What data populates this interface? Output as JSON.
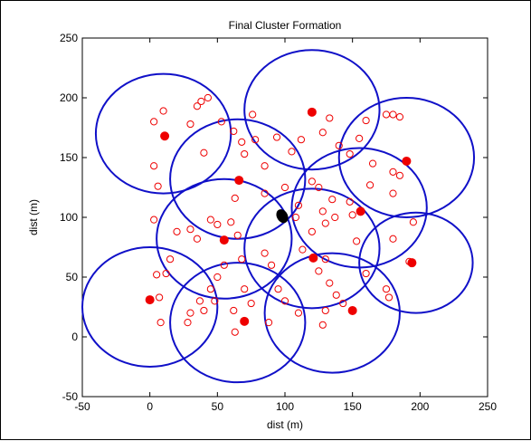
{
  "chart_data": {
    "type": "scatter",
    "title": "Final Cluster Formation",
    "xlabel": "dist (m)",
    "ylabel": "dist (m)",
    "xlim": [
      -50,
      250
    ],
    "ylim": [
      -50,
      250
    ],
    "xticks": [
      -50,
      0,
      50,
      100,
      150,
      200,
      250
    ],
    "yticks": [
      -50,
      0,
      50,
      100,
      150,
      200,
      250
    ],
    "grid": false,
    "legend": "none",
    "colors": {
      "cluster_boundary": "#1010c8",
      "cluster_head": "#ee0000",
      "node": "#ee0000",
      "sink": "#000000"
    },
    "series": [
      {
        "role": "cluster-boundaries",
        "marker": "circle-outline",
        "points": [
          {
            "x": 10,
            "y": 170,
            "r": 50
          },
          {
            "x": 120,
            "y": 190,
            "r": 50
          },
          {
            "x": 190,
            "y": 150,
            "r": 50
          },
          {
            "x": 65,
            "y": 132,
            "r": 50
          },
          {
            "x": 55,
            "y": 82,
            "r": 50
          },
          {
            "x": 120,
            "y": 74,
            "r": 50
          },
          {
            "x": 155,
            "y": 108,
            "r": 50
          },
          {
            "x": 197,
            "y": 62,
            "r": 42
          },
          {
            "x": 0,
            "y": 25,
            "r": 50
          },
          {
            "x": 65,
            "y": 12,
            "r": 50
          },
          {
            "x": 135,
            "y": 20,
            "r": 50
          }
        ]
      },
      {
        "role": "cluster-heads",
        "marker": "filled-dot",
        "points": [
          {
            "x": 11,
            "y": 168
          },
          {
            "x": 120,
            "y": 188
          },
          {
            "x": 190,
            "y": 147
          },
          {
            "x": 66,
            "y": 131
          },
          {
            "x": 55,
            "y": 81
          },
          {
            "x": 121,
            "y": 66
          },
          {
            "x": 156,
            "y": 105
          },
          {
            "x": 194,
            "y": 62
          },
          {
            "x": 0,
            "y": 31
          },
          {
            "x": 70,
            "y": 13
          },
          {
            "x": 150,
            "y": 22
          }
        ]
      },
      {
        "role": "sink",
        "marker": "black-dot",
        "points": [
          {
            "x": 98,
            "y": 101
          }
        ]
      },
      {
        "role": "sensor-nodes",
        "marker": "open-circle",
        "points": [
          {
            "x": 3,
            "y": 180
          },
          {
            "x": 10,
            "y": 189
          },
          {
            "x": 3,
            "y": 143
          },
          {
            "x": 6,
            "y": 126
          },
          {
            "x": 30,
            "y": 178
          },
          {
            "x": 35,
            "y": 193
          },
          {
            "x": 38,
            "y": 197
          },
          {
            "x": 43,
            "y": 200
          },
          {
            "x": 53,
            "y": 180
          },
          {
            "x": 40,
            "y": 154
          },
          {
            "x": 62,
            "y": 172
          },
          {
            "x": 68,
            "y": 163
          },
          {
            "x": 70,
            "y": 153
          },
          {
            "x": 76,
            "y": 186
          },
          {
            "x": 78,
            "y": 165
          },
          {
            "x": 85,
            "y": 143
          },
          {
            "x": 94,
            "y": 167
          },
          {
            "x": 105,
            "y": 155
          },
          {
            "x": 112,
            "y": 165
          },
          {
            "x": 128,
            "y": 171
          },
          {
            "x": 133,
            "y": 183
          },
          {
            "x": 140,
            "y": 160
          },
          {
            "x": 148,
            "y": 153
          },
          {
            "x": 155,
            "y": 166
          },
          {
            "x": 160,
            "y": 181
          },
          {
            "x": 175,
            "y": 186
          },
          {
            "x": 180,
            "y": 186
          },
          {
            "x": 185,
            "y": 184
          },
          {
            "x": 165,
            "y": 145
          },
          {
            "x": 163,
            "y": 127
          },
          {
            "x": 180,
            "y": 138
          },
          {
            "x": 185,
            "y": 135
          },
          {
            "x": 180,
            "y": 120
          },
          {
            "x": 195,
            "y": 96
          },
          {
            "x": 180,
            "y": 82
          },
          {
            "x": 192,
            "y": 63
          },
          {
            "x": 175,
            "y": 40
          },
          {
            "x": 177,
            "y": 33
          },
          {
            "x": 160,
            "y": 53
          },
          {
            "x": 153,
            "y": 80
          },
          {
            "x": 148,
            "y": 113
          },
          {
            "x": 150,
            "y": 102
          },
          {
            "x": 137,
            "y": 100
          },
          {
            "x": 135,
            "y": 115
          },
          {
            "x": 130,
            "y": 95
          },
          {
            "x": 128,
            "y": 105
          },
          {
            "x": 125,
            "y": 125
          },
          {
            "x": 110,
            "y": 110
          },
          {
            "x": 108,
            "y": 100
          },
          {
            "x": 120,
            "y": 88
          },
          {
            "x": 113,
            "y": 73
          },
          {
            "x": 125,
            "y": 55
          },
          {
            "x": 130,
            "y": 65
          },
          {
            "x": 133,
            "y": 45
          },
          {
            "x": 138,
            "y": 35
          },
          {
            "x": 143,
            "y": 28
          },
          {
            "x": 130,
            "y": 22
          },
          {
            "x": 128,
            "y": 10
          },
          {
            "x": 110,
            "y": 20
          },
          {
            "x": 100,
            "y": 30
          },
          {
            "x": 95,
            "y": 40
          },
          {
            "x": 90,
            "y": 60
          },
          {
            "x": 85,
            "y": 70
          },
          {
            "x": 88,
            "y": 12
          },
          {
            "x": 75,
            "y": 28
          },
          {
            "x": 70,
            "y": 40
          },
          {
            "x": 68,
            "y": 65
          },
          {
            "x": 65,
            "y": 85
          },
          {
            "x": 63,
            "y": 116
          },
          {
            "x": 60,
            "y": 96
          },
          {
            "x": 50,
            "y": 94
          },
          {
            "x": 45,
            "y": 98
          },
          {
            "x": 35,
            "y": 82
          },
          {
            "x": 30,
            "y": 90
          },
          {
            "x": 20,
            "y": 88
          },
          {
            "x": 15,
            "y": 65
          },
          {
            "x": 5,
            "y": 52
          },
          {
            "x": 12,
            "y": 53
          },
          {
            "x": 3,
            "y": 98
          },
          {
            "x": 55,
            "y": 60
          },
          {
            "x": 50,
            "y": 50
          },
          {
            "x": 45,
            "y": 40
          },
          {
            "x": 37,
            "y": 30
          },
          {
            "x": 30,
            "y": 20
          },
          {
            "x": 28,
            "y": 12
          },
          {
            "x": 40,
            "y": 22
          },
          {
            "x": 48,
            "y": 30
          },
          {
            "x": 62,
            "y": 22
          },
          {
            "x": 63,
            "y": 4
          },
          {
            "x": 7,
            "y": 33
          },
          {
            "x": 8,
            "y": 12
          },
          {
            "x": 85,
            "y": 120
          },
          {
            "x": 120,
            "y": 130
          },
          {
            "x": 100,
            "y": 125
          }
        ]
      }
    ]
  }
}
